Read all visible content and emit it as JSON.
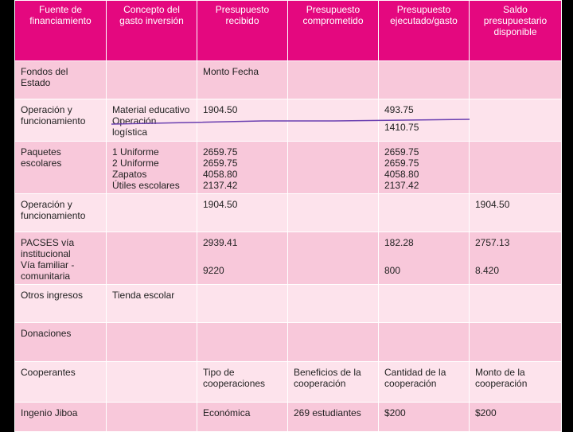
{
  "table": {
    "columns": [
      "Fuente de financiamiento",
      "Concepto del gasto inversión",
      "Presupuesto recibido",
      "Presupuesto comprometido",
      "Presupuesto ejecutado/gasto",
      "Saldo presupuestario disponible"
    ],
    "rows": [
      [
        "Fondos del Estado",
        null,
        "Monto Fecha",
        null,
        null,
        null
      ],
      [
        "Operación y funcionamiento",
        [
          "Material educativo",
          "Operación",
          "logística"
        ],
        "1904.50",
        null,
        [
          "493.75",
          "1410.75"
        ],
        null
      ],
      [
        "Paquetes escolares",
        [
          "1 Uniforme",
          "2 Uniforme",
          "Zapatos",
          "Útiles escolares"
        ],
        [
          "2659.75",
          "2659.75",
          "4058.80",
          "2137.42"
        ],
        null,
        [
          "2659.75",
          "2659.75",
          "4058.80",
          "2137.42"
        ],
        null
      ],
      [
        "Operación y funcionamiento",
        null,
        "1904.50",
        null,
        null,
        "1904.50"
      ],
      [
        [
          "PACSES vía",
          "institucional",
          "Vía familiar -",
          "comunitaria"
        ],
        null,
        [
          "2939.41",
          "9220"
        ],
        null,
        [
          "182.28",
          "800"
        ],
        [
          "2757.13",
          "8.420"
        ]
      ],
      [
        "Otros ingresos",
        "Tienda escolar",
        null,
        null,
        null,
        null
      ],
      [
        "Donaciones",
        null,
        null,
        null,
        null,
        null
      ],
      [
        "Cooperantes",
        null,
        "Tipo de cooperaciones",
        "Beneficios de la cooperación",
        "Cantidad de la cooperación",
        "Monto de la cooperación"
      ],
      [
        "Ingenio Jiboa",
        null,
        "Económica",
        "269 estudiantes",
        "$200",
        "$200"
      ]
    ]
  }
}
